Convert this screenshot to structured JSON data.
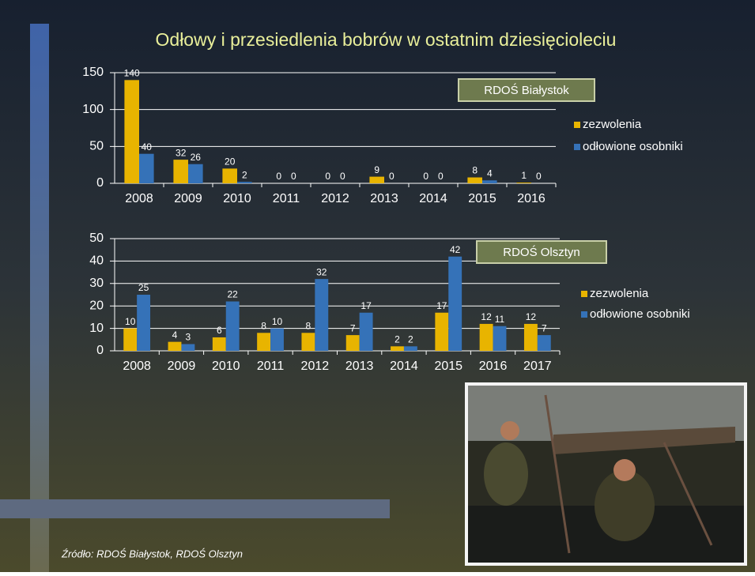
{
  "slide": {
    "title": "Odłowy i przesiedlenia bobrów w ostatnim dziesięcioleciu",
    "source": "Źródło: RDOŚ Białystok, RDOŚ Olsztyn"
  },
  "chart_data": [
    {
      "type": "bar",
      "annotation": "RDOŚ Białystok",
      "categories": [
        "2008",
        "2009",
        "2010",
        "2011",
        "2012",
        "2013",
        "2014",
        "2015",
        "2016"
      ],
      "series": [
        {
          "name": "zezwolenia",
          "color": "#e8b400",
          "values": [
            140,
            32,
            20,
            0,
            0,
            9,
            0,
            8,
            1
          ]
        },
        {
          "name": "odłowione osobniki",
          "color": "#3572b8",
          "values": [
            40,
            26,
            2,
            0,
            0,
            0,
            0,
            4,
            0
          ]
        }
      ],
      "ylim": [
        0,
        150
      ],
      "yticks": [
        0,
        50,
        100,
        150
      ],
      "grid": true,
      "legend": "right"
    },
    {
      "type": "bar",
      "annotation": "RDOŚ Olsztyn",
      "categories": [
        "2008",
        "2009",
        "2010",
        "2011",
        "2012",
        "2013",
        "2014",
        "2015",
        "2016",
        "2017"
      ],
      "series": [
        {
          "name": "zezwolenia",
          "color": "#e8b400",
          "values": [
            10,
            4,
            6,
            8,
            8,
            7,
            2,
            17,
            12,
            12
          ]
        },
        {
          "name": "odłowione osobniki",
          "color": "#3572b8",
          "values": [
            25,
            3,
            22,
            10,
            32,
            17,
            2,
            42,
            11,
            7
          ]
        }
      ],
      "ylim": [
        0,
        50
      ],
      "yticks": [
        0,
        10,
        20,
        30,
        40,
        50
      ],
      "grid": true,
      "legend": "right"
    }
  ]
}
